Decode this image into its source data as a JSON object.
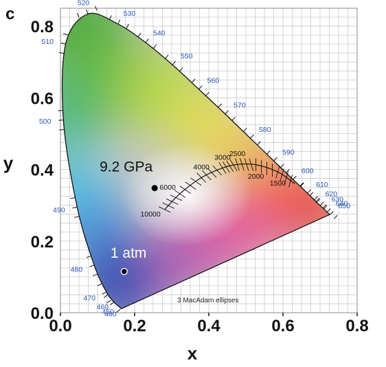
{
  "chart_data": {
    "type": "scatter",
    "panel_label": "c",
    "xlabel": "x",
    "ylabel": "y",
    "xlim": [
      0.0,
      0.8
    ],
    "ylim": [
      0.0,
      0.85
    ],
    "x_ticks": [
      "0.0",
      "0.2",
      "0.4",
      "0.6",
      "0.8"
    ],
    "y_ticks": [
      "0.0",
      "0.2",
      "0.4",
      "0.6",
      "0.8"
    ],
    "grid": true,
    "spectral_locus_labels": [
      {
        "nm": "440",
        "x": 0.164,
        "y": 0.011
      },
      {
        "nm": "450",
        "x": 0.157,
        "y": 0.018
      },
      {
        "nm": "460",
        "x": 0.144,
        "y": 0.03
      },
      {
        "nm": "470",
        "x": 0.124,
        "y": 0.058
      },
      {
        "nm": "480",
        "x": 0.091,
        "y": 0.133
      },
      {
        "nm": "490",
        "x": 0.045,
        "y": 0.295
      },
      {
        "nm": "500",
        "x": 0.008,
        "y": 0.538
      },
      {
        "nm": "510",
        "x": 0.014,
        "y": 0.75
      },
      {
        "nm": "520",
        "x": 0.074,
        "y": 0.834
      },
      {
        "nm": "530",
        "x": 0.155,
        "y": 0.806
      },
      {
        "nm": "540",
        "x": 0.23,
        "y": 0.754
      },
      {
        "nm": "550",
        "x": 0.302,
        "y": 0.692
      },
      {
        "nm": "560",
        "x": 0.373,
        "y": 0.624
      },
      {
        "nm": "570",
        "x": 0.444,
        "y": 0.555
      },
      {
        "nm": "580",
        "x": 0.512,
        "y": 0.487
      },
      {
        "nm": "590",
        "x": 0.575,
        "y": 0.424
      },
      {
        "nm": "600",
        "x": 0.627,
        "y": 0.372
      },
      {
        "nm": "610",
        "x": 0.666,
        "y": 0.334
      },
      {
        "nm": "620",
        "x": 0.691,
        "y": 0.308
      },
      {
        "nm": "630",
        "x": 0.708,
        "y": 0.292
      },
      {
        "nm": "640",
        "x": 0.719,
        "y": 0.281
      },
      {
        "nm": "650",
        "x": 0.726,
        "y": 0.274
      }
    ],
    "planckian_locus": {
      "points": [
        {
          "T": "10000",
          "x": 0.281,
          "y": 0.288
        },
        {
          "T": "6000",
          "x": 0.322,
          "y": 0.332
        },
        {
          "T": "4000",
          "x": 0.38,
          "y": 0.377
        },
        {
          "T": "3000",
          "x": 0.437,
          "y": 0.404
        },
        {
          "T": "2500",
          "x": 0.477,
          "y": 0.414
        },
        {
          "T": "2000",
          "x": 0.527,
          "y": 0.413
        },
        {
          "T": "1500",
          "x": 0.586,
          "y": 0.393
        },
        {
          "T": "",
          "x": 0.632,
          "y": 0.36
        }
      ],
      "labels": [
        "10000",
        "6000",
        "4000",
        "3000",
        "2500",
        "2000",
        "1500"
      ]
    },
    "series": [
      {
        "label": "9.2 GPa",
        "x": 0.254,
        "y": 0.348,
        "label_color": "#111111"
      },
      {
        "label": "1 atm",
        "x": 0.172,
        "y": 0.115,
        "label_color": "#ffffff"
      }
    ],
    "footnote": "3  MacAdam ellipses"
  }
}
